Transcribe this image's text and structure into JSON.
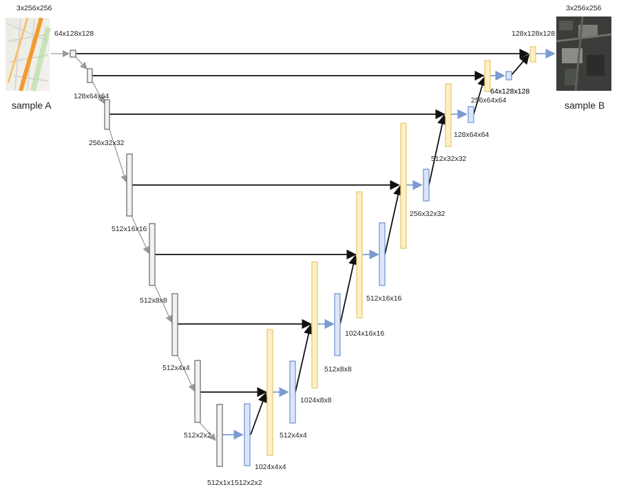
{
  "input": {
    "label": "sample A",
    "dims": "3x256x256"
  },
  "output": {
    "label": "sample B",
    "dims": "3x256x256"
  },
  "encoder_labels": [
    "64x128x128",
    "128x64x64",
    "256x32x32",
    "512x16x16",
    "512x8x8",
    "512x4x4",
    "512x2x2",
    "512x1x1"
  ],
  "decoder_labels": [
    "512x2x2",
    "512x4x4",
    "1024x4x4",
    "512x8x8",
    "1024x8x8",
    "512x16x16",
    "1024x16x16",
    "256x32x32",
    "512x32x32",
    "128x64x64",
    "256x64x64",
    "64x128x128",
    "128x128x128"
  ],
  "colors": {
    "encoder": "#f2f2f2",
    "upsample": "#fdf0c4",
    "decoder": "#dbe6fb",
    "skip": "#111111"
  }
}
